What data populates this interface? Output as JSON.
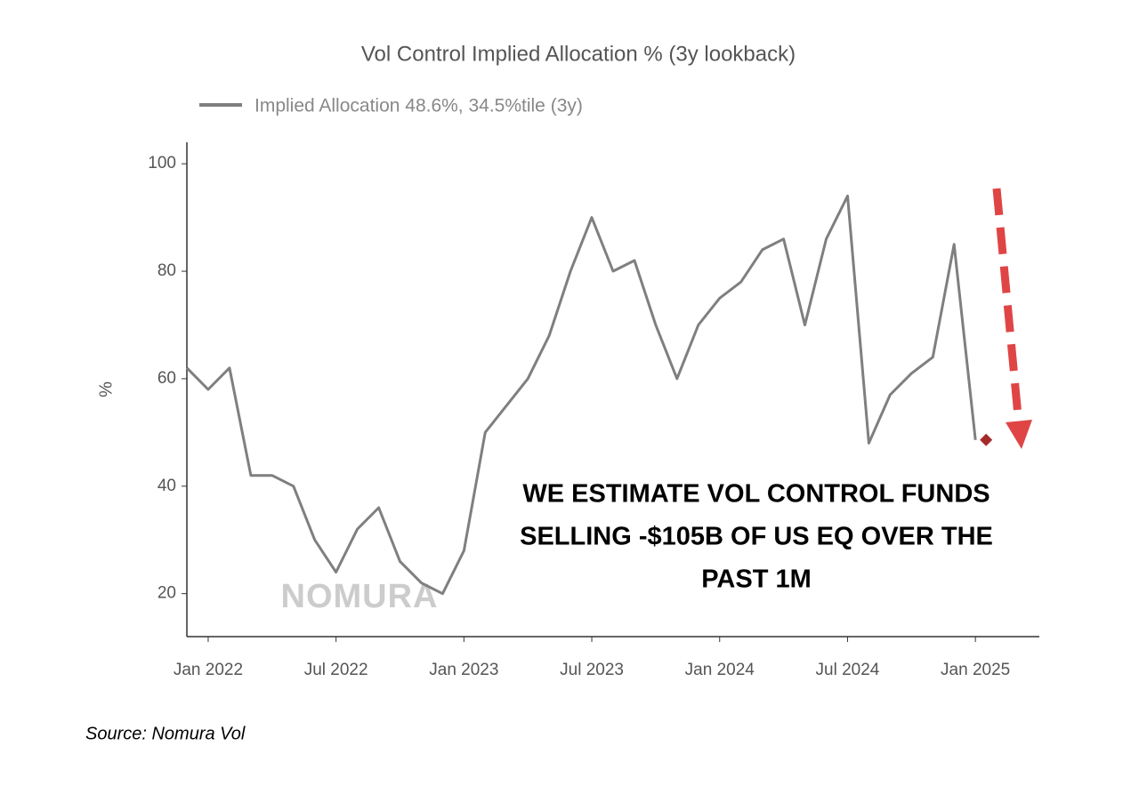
{
  "chart_data": {
    "type": "line",
    "title": "Vol Control Implied Allocation % (3y lookback)",
    "y_label": "%",
    "annotation": [
      "WE ESTIMATE VOL CONTROL FUNDS",
      "SELLING -$105B OF US EQ OVER THE",
      "PAST 1M"
    ],
    "watermark": "NOMURA",
    "source": "Source: Nomura Vol",
    "x": [
      "2021-12",
      "2022-01",
      "2022-02",
      "2022-03",
      "2022-04",
      "2022-05",
      "2022-06",
      "2022-07",
      "2022-08",
      "2022-09",
      "2022-10",
      "2022-11",
      "2022-12",
      "2023-01",
      "2023-02",
      "2023-03",
      "2023-04",
      "2023-05",
      "2023-06",
      "2023-07",
      "2023-08",
      "2023-09",
      "2023-10",
      "2023-11",
      "2023-12",
      "2024-01",
      "2024-02",
      "2024-03",
      "2024-04",
      "2024-05",
      "2024-06",
      "2024-07",
      "2024-08",
      "2024-09",
      "2024-10",
      "2024-11",
      "2024-12",
      "2025-01"
    ],
    "series": [
      {
        "name": "Implied Allocation 48.6%, 34.5%tile (3y)",
        "color": "#7f7f7f",
        "values": [
          62,
          58,
          62,
          42,
          42,
          40,
          30,
          24,
          32,
          36,
          26,
          22,
          20,
          28,
          50,
          55,
          60,
          68,
          80,
          90,
          80,
          82,
          70,
          60,
          70,
          75,
          78,
          84,
          86,
          70,
          86,
          94,
          48,
          57,
          61,
          64,
          85,
          48.6
        ]
      }
    ],
    "marker_color": "#a52a2a",
    "xlim": [
      "2021-12",
      "2025-04"
    ],
    "xticks": [
      {
        "value": "2022-01",
        "label": "Jan 2022"
      },
      {
        "value": "2022-07",
        "label": "Jul 2022"
      },
      {
        "value": "2023-01",
        "label": "Jan 2023"
      },
      {
        "value": "2023-07",
        "label": "Jul 2023"
      },
      {
        "value": "2024-01",
        "label": "Jan 2024"
      },
      {
        "value": "2024-07",
        "label": "Jul 2024"
      },
      {
        "value": "2025-01",
        "label": "Jan 2025"
      }
    ],
    "ylim": [
      12,
      104
    ],
    "yticks": [
      20,
      40,
      60,
      80,
      100
    ],
    "grid": false
  }
}
